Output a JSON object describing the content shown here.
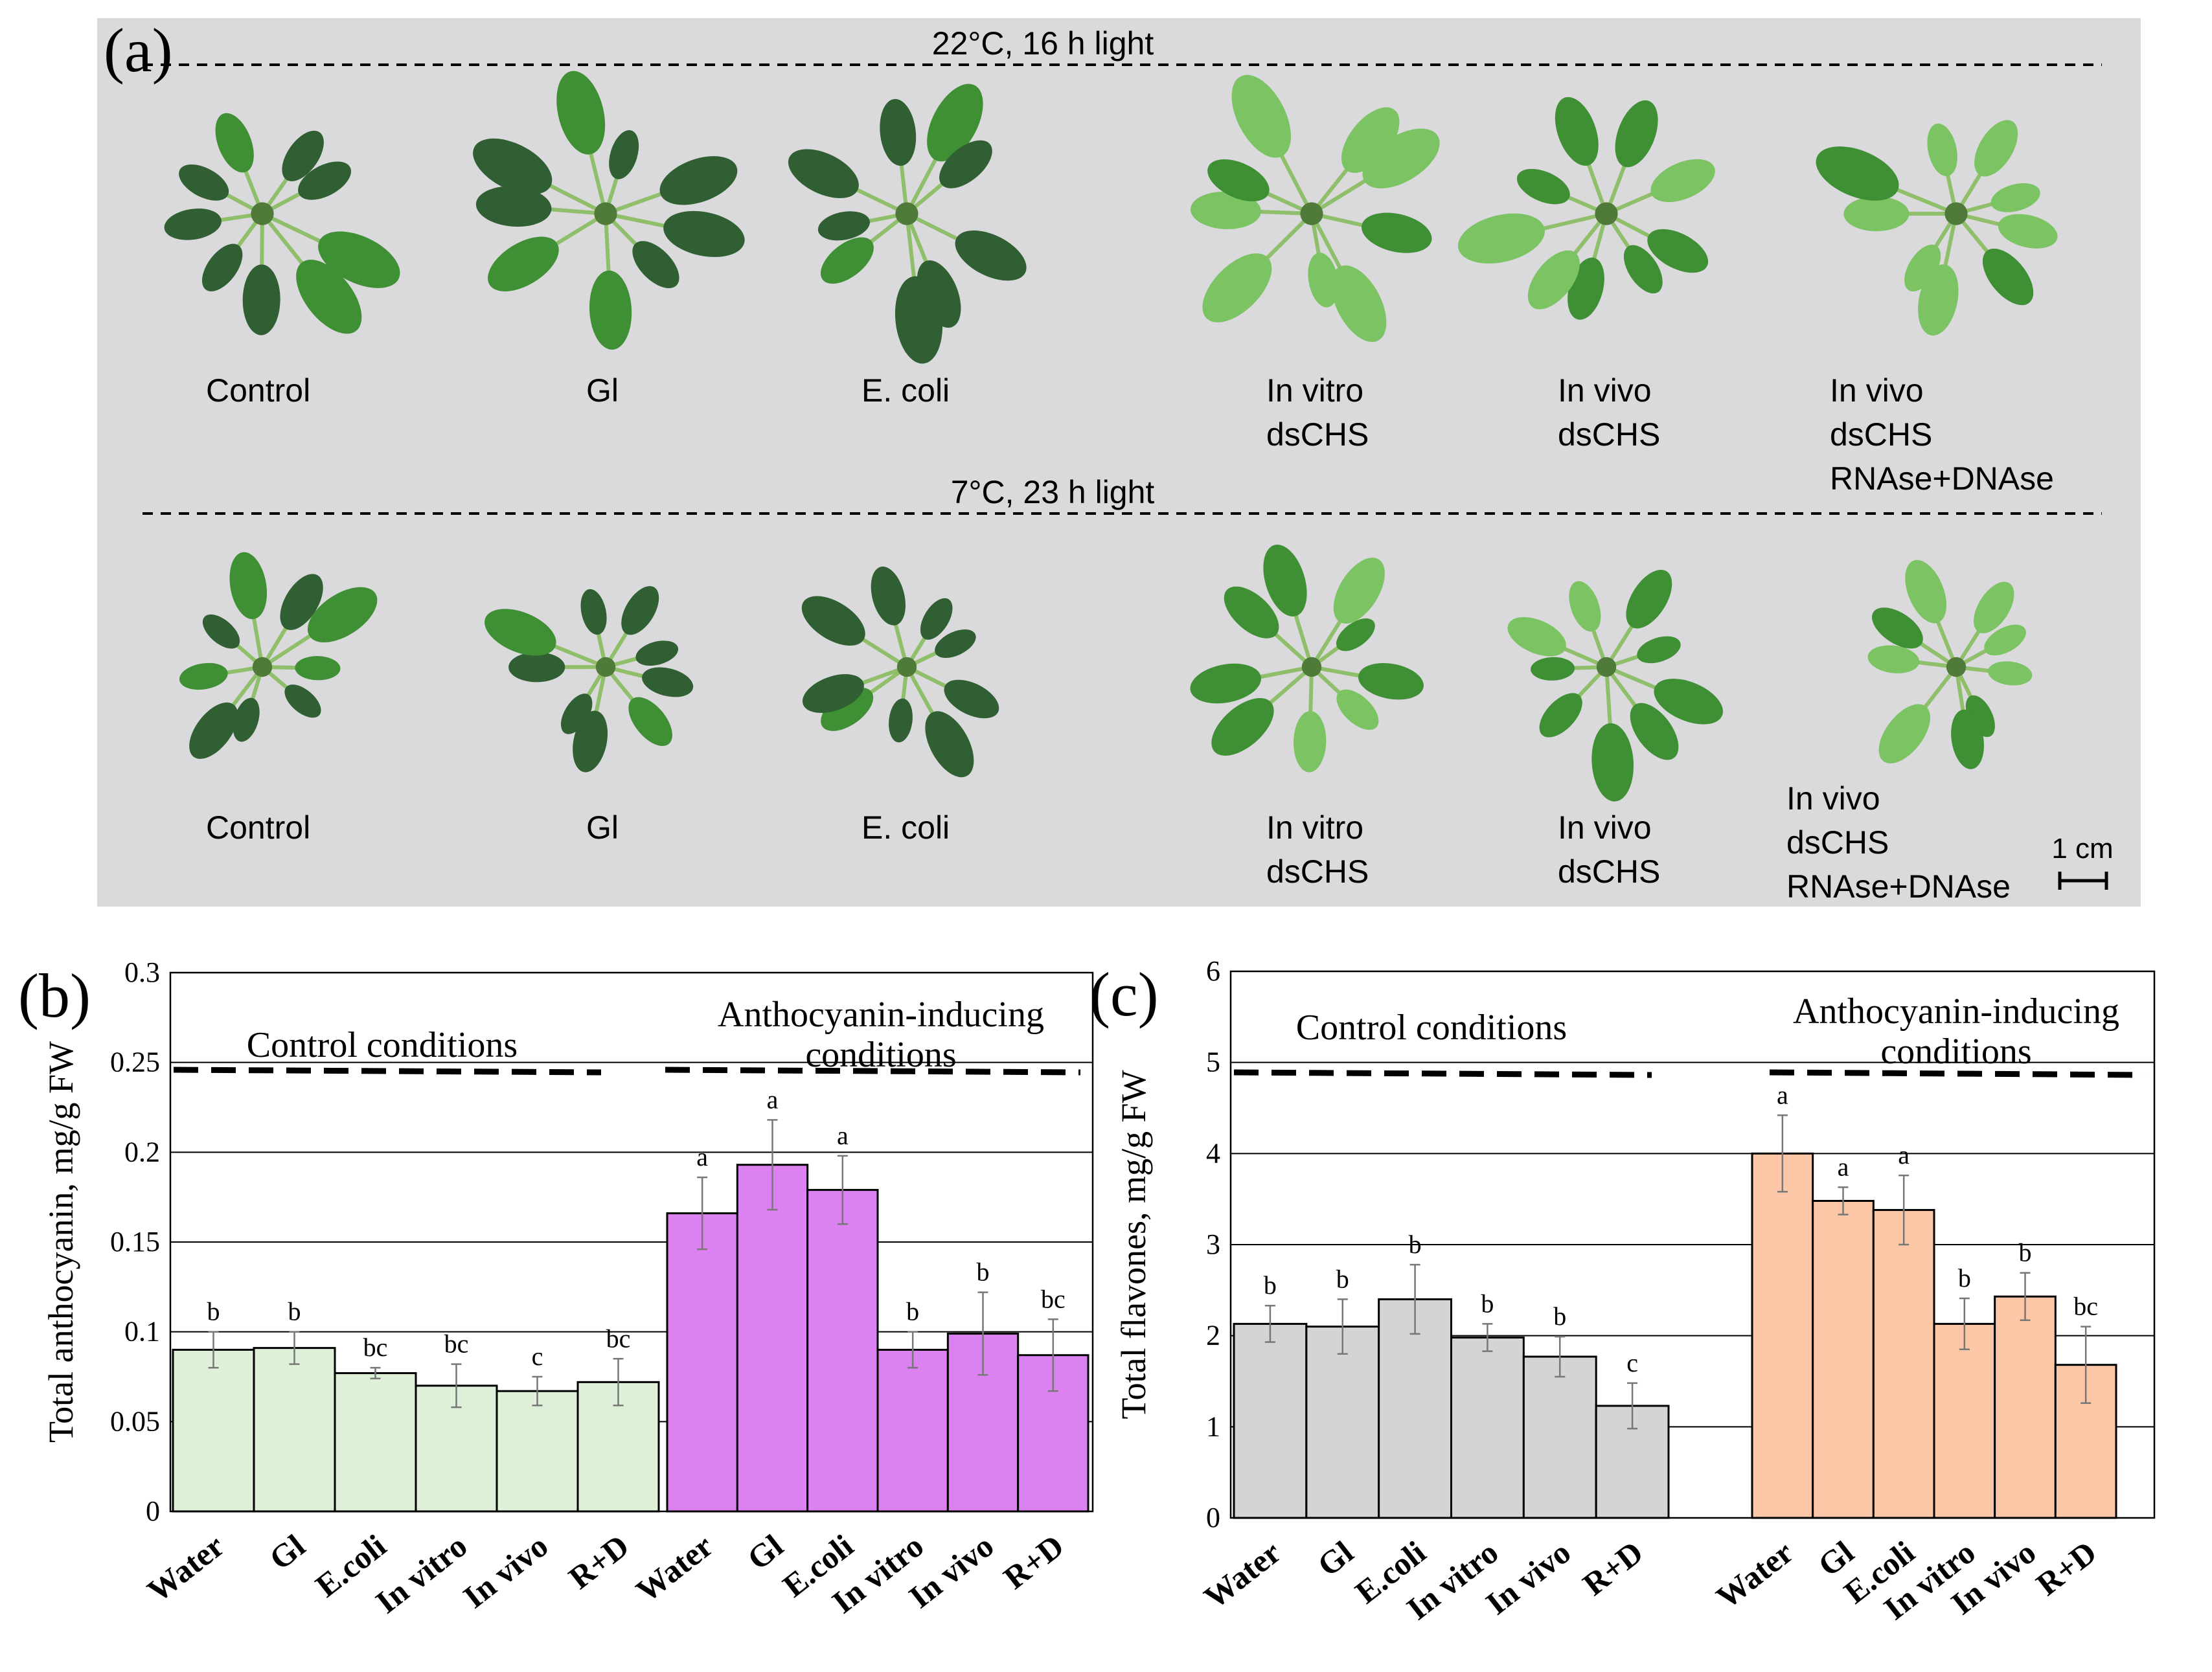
{
  "figure": {
    "panel_a": {
      "letter": "(a)",
      "condition_top": "22°C, 16 h light",
      "condition_bottom": "7°C, 23 h light",
      "labels_top": [
        "Control",
        "Gl",
        "E. coli",
        "In vitro\ndsCHS",
        "In vivo\ndsCHS",
        "In vivo\ndsCHS\nRNAse+DNAse"
      ],
      "labels_bottom": [
        "Control",
        "Gl",
        "E. coli",
        "In vitro\ndsCHS",
        "In vivo\ndsCHS",
        "In vivo\ndsCHS\nRNAse+DNAse"
      ],
      "scale_bar": "1 cm",
      "colors": {
        "background": "#dad9dc",
        "leaf": "#3f8f34",
        "leaf_light": "#7cc463",
        "leaf_dark": "#2f5f32"
      }
    }
  },
  "chart_data": [
    {
      "type": "bar",
      "letter": "(b)",
      "ylabel": "Total anthocyanin, mg/g FW",
      "ylim": [
        0,
        0.3
      ],
      "yticks": [
        0,
        0.05,
        0.1,
        0.15,
        0.2,
        0.25,
        0.3
      ],
      "ytick_labels": [
        "0",
        "0.05",
        "0.1",
        "0.15",
        "0.2",
        "0.25",
        "0.3"
      ],
      "grid": "horizontal",
      "categories": [
        "Water",
        "Gl",
        "E.coli",
        "In vitro",
        "In vivo",
        "R+D"
      ],
      "groups": [
        {
          "name": "Control conditions",
          "color": "#dff0d8",
          "values": [
            0.09,
            0.091,
            0.077,
            0.07,
            0.067,
            0.072
          ],
          "errors": [
            0.01,
            0.009,
            0.003,
            0.012,
            0.008,
            0.013
          ],
          "letters": [
            "b",
            "b",
            "bc",
            "bc",
            "c",
            "bc"
          ]
        },
        {
          "name": "Anthocyanin-inducing\nconditions",
          "color": "#dc82f0",
          "values": [
            0.166,
            0.193,
            0.179,
            0.09,
            0.099,
            0.087
          ],
          "errors": [
            0.02,
            0.025,
            0.019,
            0.01,
            0.023,
            0.02
          ],
          "letters": [
            "a",
            "a",
            "a",
            "b",
            "b",
            "bc"
          ]
        }
      ]
    },
    {
      "type": "bar",
      "letter": "(c)",
      "ylabel": "Total flavones, mg/g FW",
      "ylim": [
        0,
        6
      ],
      "yticks": [
        0,
        1,
        2,
        3,
        4,
        5,
        6
      ],
      "ytick_labels": [
        "0",
        "1",
        "2",
        "3",
        "4",
        "5",
        "6"
      ],
      "grid": "horizontal",
      "categories": [
        "Water",
        "Gl",
        "E.coli",
        "In vitro",
        "In vivo",
        "R+D"
      ],
      "groups": [
        {
          "name": "Control conditions",
          "color": "#d4d4d4",
          "values": [
            2.13,
            2.1,
            2.4,
            1.98,
            1.77,
            1.23
          ],
          "errors": [
            0.2,
            0.3,
            0.38,
            0.15,
            0.22,
            0.25
          ],
          "letters": [
            "b",
            "b",
            "b",
            "b",
            "b",
            "c"
          ]
        },
        {
          "name": "Anthocyanin-inducing\nconditions",
          "color": "#fbc7a6",
          "values": [
            4.0,
            3.48,
            3.38,
            2.13,
            2.43,
            1.68
          ],
          "errors": [
            0.42,
            0.15,
            0.38,
            0.28,
            0.26,
            0.42
          ],
          "letters": [
            "a",
            "a",
            "a",
            "b",
            "b",
            "bc"
          ]
        }
      ]
    }
  ]
}
